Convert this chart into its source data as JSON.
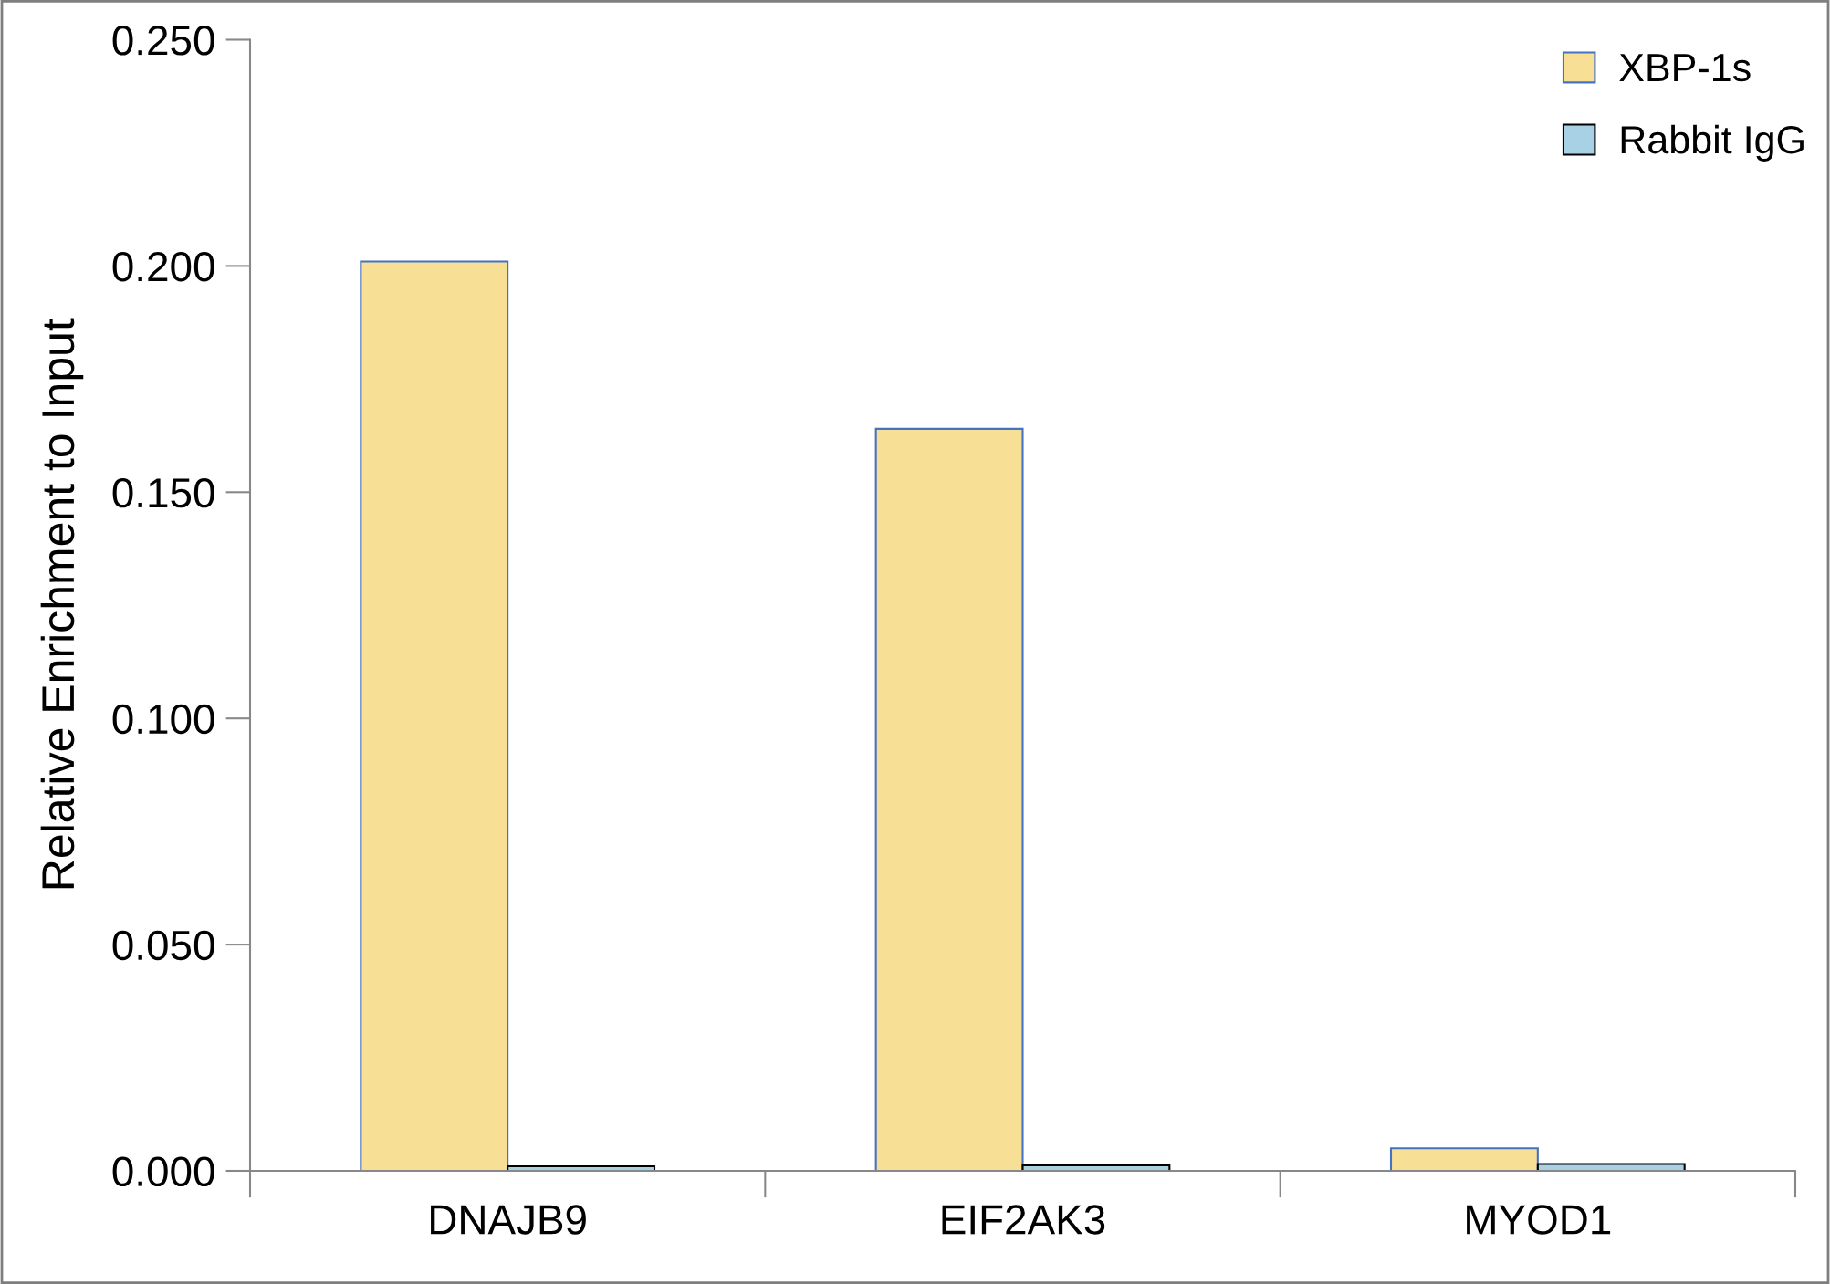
{
  "chart_data": {
    "type": "bar",
    "ylabel": "Relative Enrichment to Input",
    "categories": [
      "DNAJB9",
      "EIF2AK3",
      "MYOD1"
    ],
    "series": [
      {
        "name": "XBP-1s",
        "color": "#f7df96",
        "values": [
          0.201,
          0.164,
          0.005
        ]
      },
      {
        "name": "Rabbit IgG",
        "color": "#a9d1e6",
        "values": [
          0.001,
          0.0012,
          0.0015
        ]
      }
    ],
    "ylim": [
      0,
      0.25
    ],
    "yticks": [
      {
        "value": 0,
        "label": "0.000"
      },
      {
        "value": 0.05,
        "label": "0.050"
      },
      {
        "value": 0.1,
        "label": "0.100"
      },
      {
        "value": 0.15,
        "label": "0.150"
      },
      {
        "value": 0.2,
        "label": "0.200"
      },
      {
        "value": 0.25,
        "label": "0.250"
      }
    ],
    "legend": "top right",
    "grid": false
  }
}
